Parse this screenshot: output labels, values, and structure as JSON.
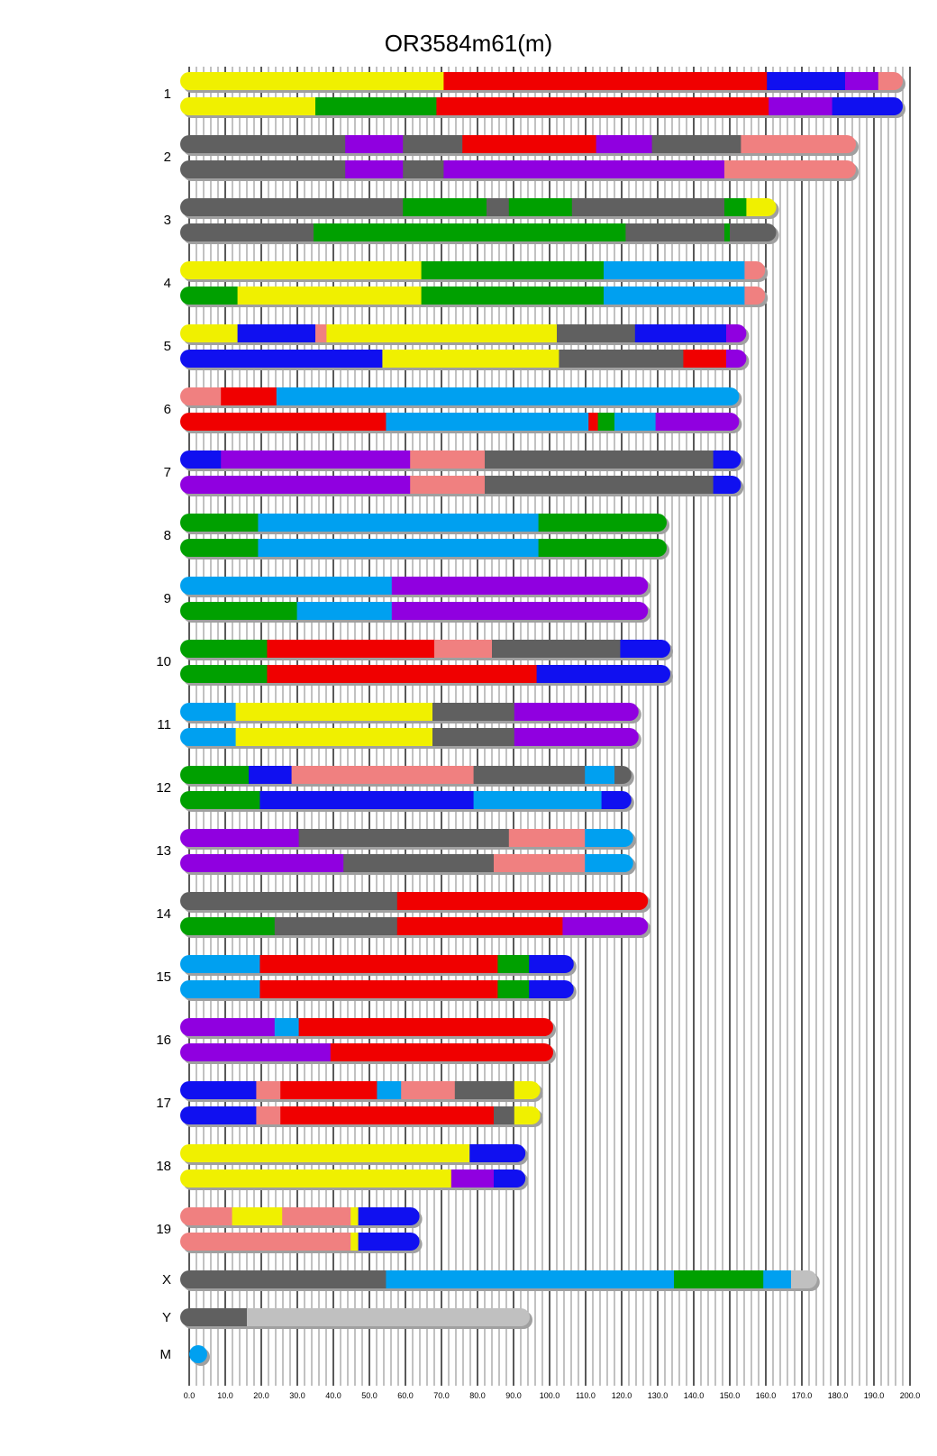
{
  "chart_data": {
    "type": "chromosome-painting",
    "title": "OR3584m61(m)",
    "xlim": [
      0,
      200
    ],
    "major_tick_step": 10,
    "minor_grid_step": 2,
    "tick_labels": [
      "0.0",
      "10.0",
      "20.0",
      "30.0",
      "40.0",
      "50.0",
      "60.0",
      "70.0",
      "80.0",
      "90.0",
      "100.0",
      "110.0",
      "120.0",
      "130.0",
      "140.0",
      "150.0",
      "160.0",
      "170.0",
      "180.0",
      "190.0",
      "200.0"
    ],
    "colors": {
      "yellow": "#f0f000",
      "red": "#f00000",
      "blue": "#1010f0",
      "purple": "#9000e0",
      "salmon": "#f08080",
      "gray": "#606060",
      "green": "#00a000",
      "skyblue": "#00a0f0",
      "lightgray": "#c0c0c0",
      "shadow": "#a0a0a0"
    },
    "chromosomes": [
      {
        "name": "1",
        "haplotypes": [
          [
            [
              "yellow",
              70.6
            ],
            [
              "red",
              160.3
            ],
            [
              "blue",
              182
            ],
            [
              "purple",
              191.2
            ],
            [
              "salmon",
              198
            ]
          ],
          [
            [
              "yellow",
              35
            ],
            [
              "green",
              68.6
            ],
            [
              "red",
              160.8
            ],
            [
              "purple",
              178.4
            ],
            [
              "blue",
              198
            ]
          ]
        ]
      },
      {
        "name": "2",
        "haplotypes": [
          [
            [
              "gray",
              43.3
            ],
            [
              "purple",
              59.3
            ],
            [
              "gray",
              75.8
            ],
            [
              "red",
              112.9
            ],
            [
              "purple",
              128.4
            ],
            [
              "gray",
              153.1
            ],
            [
              "salmon",
              185
            ]
          ],
          [
            [
              "gray",
              43.3
            ],
            [
              "purple",
              59.3
            ],
            [
              "gray",
              70.6
            ],
            [
              "purple",
              148.5
            ],
            [
              "salmon",
              185
            ]
          ]
        ]
      },
      {
        "name": "3",
        "haplotypes": [
          [
            [
              "gray",
              59.3
            ],
            [
              "green",
              82.5
            ],
            [
              "gray",
              88.7
            ],
            [
              "green",
              106.2
            ],
            [
              "gray",
              148.5
            ],
            [
              "green",
              154.6
            ],
            [
              "yellow",
              162.9
            ]
          ],
          [
            [
              "gray",
              34.5
            ],
            [
              "green",
              121.1
            ],
            [
              "gray",
              148.5
            ],
            [
              "green",
              150
            ],
            [
              "gray",
              162.9
            ]
          ]
        ]
      },
      {
        "name": "4",
        "haplotypes": [
          [
            [
              "yellow",
              64.4
            ],
            [
              "green",
              115
            ],
            [
              "skyblue",
              154.1
            ],
            [
              "salmon",
              159.8
            ]
          ],
          [
            [
              "green",
              13.4
            ],
            [
              "yellow",
              64.4
            ],
            [
              "green",
              115
            ],
            [
              "skyblue",
              154.1
            ],
            [
              "salmon",
              159.8
            ]
          ]
        ]
      },
      {
        "name": "5",
        "haplotypes": [
          [
            [
              "yellow",
              13.4
            ],
            [
              "blue",
              35
            ],
            [
              "salmon",
              38.1
            ],
            [
              "yellow",
              102
            ],
            [
              "gray",
              123.7
            ],
            [
              "blue",
              149
            ],
            [
              "purple",
              154.6
            ]
          ],
          [
            [
              "blue",
              53.6
            ],
            [
              "yellow",
              102.6
            ],
            [
              "gray",
              137.1
            ],
            [
              "red",
              149
            ],
            [
              "purple",
              154.6
            ]
          ]
        ]
      },
      {
        "name": "6",
        "haplotypes": [
          [
            [
              "salmon",
              8.8
            ],
            [
              "red",
              24.2
            ],
            [
              "skyblue",
              152.6
            ]
          ],
          [
            [
              "red",
              54.6
            ],
            [
              "skyblue",
              110.8
            ],
            [
              "red",
              113.4
            ],
            [
              "green",
              118
            ],
            [
              "skyblue",
              129.4
            ],
            [
              "purple",
              152.6
            ]
          ]
        ]
      },
      {
        "name": "7",
        "haplotypes": [
          [
            [
              "blue",
              8.8
            ],
            [
              "purple",
              61.3
            ],
            [
              "salmon",
              82
            ],
            [
              "gray",
              145.4
            ],
            [
              "blue",
              153.1
            ]
          ],
          [
            [
              "purple",
              61.3
            ],
            [
              "salmon",
              82
            ],
            [
              "gray",
              145.4
            ],
            [
              "blue",
              153.1
            ]
          ]
        ]
      },
      {
        "name": "8",
        "haplotypes": [
          [
            [
              "green",
              19.1
            ],
            [
              "skyblue",
              96.9
            ],
            [
              "green",
              132.5
            ]
          ],
          [
            [
              "green",
              19.1
            ],
            [
              "skyblue",
              96.9
            ],
            [
              "green",
              132.5
            ]
          ]
        ]
      },
      {
        "name": "9",
        "haplotypes": [
          [
            [
              "skyblue",
              56.2
            ],
            [
              "purple",
              127.3
            ]
          ],
          [
            [
              "green",
              29.9
            ],
            [
              "skyblue",
              56.2
            ],
            [
              "purple",
              127.3
            ]
          ]
        ]
      },
      {
        "name": "10",
        "haplotypes": [
          [
            [
              "green",
              21.6
            ],
            [
              "red",
              68
            ],
            [
              "salmon",
              84
            ],
            [
              "gray",
              119.6
            ],
            [
              "blue",
              133.5
            ]
          ],
          [
            [
              "green",
              21.6
            ],
            [
              "red",
              96.4
            ],
            [
              "blue",
              133.5
            ]
          ]
        ]
      },
      {
        "name": "11",
        "haplotypes": [
          [
            [
              "skyblue",
              12.9
            ],
            [
              "yellow",
              67.5
            ],
            [
              "gray",
              90.2
            ],
            [
              "purple",
              124.7
            ]
          ],
          [
            [
              "skyblue",
              12.9
            ],
            [
              "yellow",
              67.5
            ],
            [
              "gray",
              90.2
            ],
            [
              "purple",
              124.7
            ]
          ]
        ]
      },
      {
        "name": "12",
        "haplotypes": [
          [
            [
              "green",
              16.5
            ],
            [
              "blue",
              28.4
            ],
            [
              "salmon",
              78.9
            ],
            [
              "gray",
              109.8
            ],
            [
              "skyblue",
              118
            ],
            [
              "gray",
              122.7
            ]
          ],
          [
            [
              "green",
              19.6
            ],
            [
              "blue",
              78.9
            ],
            [
              "skyblue",
              114.4
            ],
            [
              "blue",
              122.7
            ]
          ]
        ]
      },
      {
        "name": "13",
        "haplotypes": [
          [
            [
              "purple",
              30.4
            ],
            [
              "gray",
              88.7
            ],
            [
              "salmon",
              109.8
            ],
            [
              "skyblue",
              123.2
            ]
          ],
          [
            [
              "purple",
              42.8
            ],
            [
              "gray",
              84.5
            ],
            [
              "salmon",
              109.8
            ],
            [
              "skyblue",
              123.2
            ]
          ]
        ]
      },
      {
        "name": "14",
        "haplotypes": [
          [
            [
              "gray",
              57.7
            ],
            [
              "red",
              127.3
            ]
          ],
          [
            [
              "green",
              23.7
            ],
            [
              "gray",
              57.7
            ],
            [
              "red",
              103.6
            ],
            [
              "purple",
              127.3
            ]
          ]
        ]
      },
      {
        "name": "15",
        "haplotypes": [
          [
            [
              "skyblue",
              19.6
            ],
            [
              "red",
              85.6
            ],
            [
              "green",
              94.3
            ],
            [
              "blue",
              106.7
            ]
          ],
          [
            [
              "skyblue",
              19.6
            ],
            [
              "red",
              85.6
            ],
            [
              "green",
              94.3
            ],
            [
              "blue",
              106.7
            ]
          ]
        ]
      },
      {
        "name": "16",
        "haplotypes": [
          [
            [
              "purple",
              23.7
            ],
            [
              "skyblue",
              30.4
            ],
            [
              "red",
              101
            ]
          ],
          [
            [
              "purple",
              39.2
            ],
            [
              "red",
              101
            ]
          ]
        ]
      },
      {
        "name": "17",
        "haplotypes": [
          [
            [
              "blue",
              18.6
            ],
            [
              "salmon",
              25.3
            ],
            [
              "red",
              52.1
            ],
            [
              "skyblue",
              58.8
            ],
            [
              "salmon",
              73.7
            ],
            [
              "gray",
              90.2
            ],
            [
              "yellow",
              97.4
            ]
          ],
          [
            [
              "blue",
              18.6
            ],
            [
              "salmon",
              25.3
            ],
            [
              "red",
              84.5
            ],
            [
              "gray",
              90.2
            ],
            [
              "yellow",
              97.4
            ]
          ]
        ]
      },
      {
        "name": "18",
        "haplotypes": [
          [
            [
              "yellow",
              77.8
            ],
            [
              "blue",
              93.3
            ]
          ],
          [
            [
              "yellow",
              72.7
            ],
            [
              "purple",
              84.5
            ],
            [
              "blue",
              93.3
            ]
          ]
        ]
      },
      {
        "name": "19",
        "haplotypes": [
          [
            [
              "salmon",
              11.9
            ],
            [
              "yellow",
              25.8
            ],
            [
              "salmon",
              44.8
            ],
            [
              "yellow",
              46.9
            ],
            [
              "blue",
              63.9
            ]
          ],
          [
            [
              "salmon",
              44.8
            ],
            [
              "yellow",
              46.9
            ],
            [
              "blue",
              63.9
            ]
          ]
        ]
      },
      {
        "name": "X",
        "haplotypes": [
          [
            [
              "gray",
              54.6
            ],
            [
              "skyblue",
              134.5
            ],
            [
              "green",
              159.3
            ],
            [
              "skyblue",
              167
            ],
            [
              "lightgray",
              174.2
            ]
          ]
        ]
      },
      {
        "name": "Y",
        "haplotypes": [
          [
            [
              "gray",
              16
            ],
            [
              "lightgray",
              94.5
            ]
          ]
        ]
      },
      {
        "name": "M",
        "haplotypes": [
          [
            [
              "skyblue",
              2.5
            ]
          ]
        ]
      }
    ]
  }
}
